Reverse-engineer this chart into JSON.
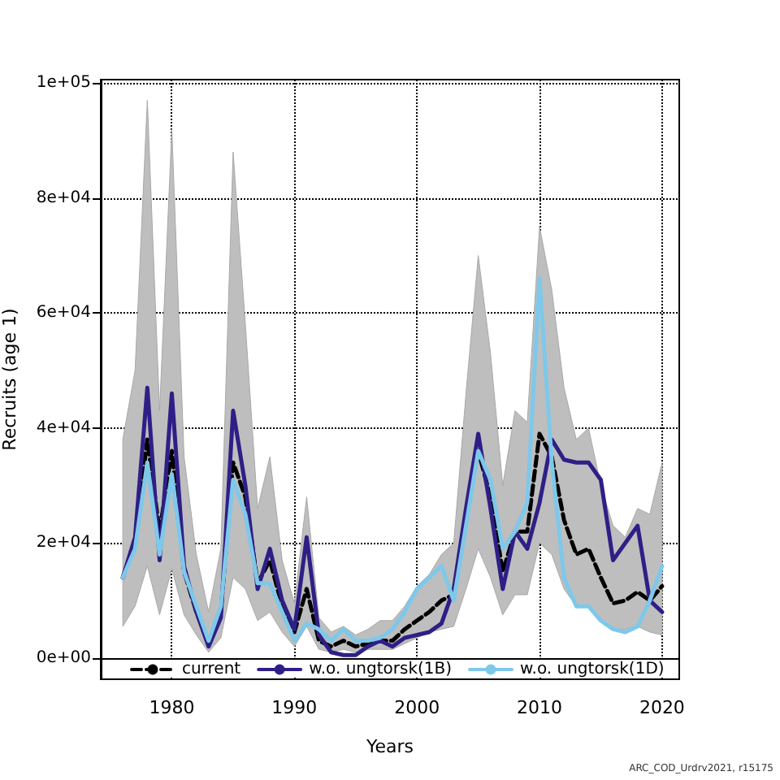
{
  "chart_data": {
    "type": "line",
    "xlabel": "Years",
    "ylabel": "Recruits (age 1)",
    "x": [
      1976,
      1977,
      1978,
      1979,
      1980,
      1981,
      1982,
      1983,
      1984,
      1985,
      1986,
      1987,
      1988,
      1989,
      1990,
      1991,
      1992,
      1993,
      1994,
      1995,
      1996,
      1997,
      1998,
      1999,
      2000,
      2001,
      2002,
      2003,
      2004,
      2005,
      2006,
      2007,
      2008,
      2009,
      2010,
      2011,
      2012,
      2013,
      2014,
      2015,
      2016,
      2017,
      2018,
      2019,
      2020
    ],
    "series": [
      {
        "name": "current",
        "color": "#000000",
        "line_style": "dashed",
        "values": [
          14000,
          20000,
          38000,
          22000,
          36000,
          15000,
          8000,
          2500,
          8000,
          34000,
          28000,
          13000,
          17000,
          9000,
          4500,
          12000,
          3000,
          2000,
          3000,
          2000,
          2500,
          3000,
          3000,
          5000,
          6500,
          8000,
          10000,
          11000,
          25000,
          36000,
          28000,
          15000,
          22000,
          22000,
          39000,
          35000,
          24000,
          18000,
          19000,
          14000,
          9500,
          10000,
          11500,
          10000,
          12500
        ],
        "lower": [
          5500,
          9000,
          16000,
          7500,
          15500,
          7500,
          4000,
          1000,
          3500,
          14000,
          12000,
          6500,
          8000,
          4500,
          2000,
          5500,
          1500,
          1000,
          1500,
          1000,
          1500,
          1500,
          1500,
          2500,
          3500,
          4500,
          5000,
          5500,
          12000,
          19000,
          14000,
          7500,
          11000,
          11000,
          20000,
          18000,
          12000,
          9000,
          9000,
          6500,
          5000,
          5000,
          5500,
          4500,
          4000
        ],
        "upper": [
          38000,
          50000,
          97000,
          43000,
          92000,
          35000,
          18000,
          8000,
          19000,
          88000,
          58000,
          26000,
          35000,
          17000,
          9500,
          28000,
          7000,
          4500,
          5500,
          4000,
          5000,
          6500,
          6500,
          9000,
          12500,
          14500,
          18000,
          20000,
          46000,
          70000,
          53000,
          30000,
          43000,
          41000,
          75000,
          64000,
          47000,
          38000,
          40000,
          30000,
          23000,
          21000,
          26000,
          25000,
          34000
        ]
      },
      {
        "name": "w.o. ungtorsk(1B)",
        "color": "#2e1f87",
        "line_style": "solid",
        "values": [
          14000,
          21000,
          47000,
          17000,
          46000,
          16000,
          8000,
          2000,
          7000,
          43000,
          30000,
          12000,
          19000,
          10000,
          5000,
          21000,
          4000,
          1000,
          500,
          500,
          2000,
          3000,
          2000,
          3500,
          4000,
          4500,
          6000,
          12000,
          26000,
          39000,
          26000,
          12000,
          22000,
          19000,
          27000,
          38000,
          34500,
          34000,
          34000,
          31000,
          17000,
          20000,
          23000,
          10000,
          8000
        ]
      },
      {
        "name": "w.o. ungtorsk(1D)",
        "color": "#7ec8ea",
        "line_style": "solid",
        "values": [
          14000,
          19000,
          34000,
          18000,
          32000,
          15000,
          9000,
          3000,
          9000,
          31000,
          25000,
          13000,
          13000,
          8000,
          3000,
          6000,
          5000,
          3000,
          5000,
          3000,
          3000,
          3500,
          5000,
          8000,
          12000,
          14000,
          16000,
          10000,
          23000,
          36000,
          31000,
          19000,
          22000,
          27000,
          66000,
          34000,
          14000,
          9000,
          9000,
          6500,
          5000,
          4500,
          5500,
          10000,
          16000
        ]
      }
    ],
    "xlim": [
      1974.2,
      2021.4
    ],
    "xticks": [
      1980,
      1990,
      2000,
      2010,
      2020
    ],
    "ylim": [
      -3700,
      100600
    ],
    "yticks": [
      {
        "value": 0,
        "label": "0e+00"
      },
      {
        "value": 20000,
        "label": "2e+04"
      },
      {
        "value": 40000,
        "label": "4e+04"
      },
      {
        "value": 60000,
        "label": "6e+04"
      },
      {
        "value": 80000,
        "label": "8e+04"
      },
      {
        "value": 100000,
        "label": "1e+05"
      }
    ],
    "grid": true,
    "legend": "bottom",
    "marker": "none",
    "annotations": [
      "ARC_COD_Urdrv2021, r15175"
    ]
  }
}
